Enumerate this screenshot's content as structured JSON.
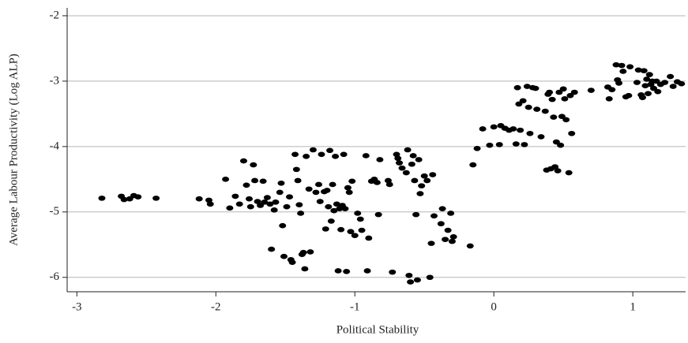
{
  "chart_data": {
    "type": "scatter",
    "x_label": "Political Stability",
    "y_label": "Average Labour Productivity (Log ALP)",
    "xlim": [
      -3.07,
      1.38
    ],
    "xticks": [
      -3,
      -2,
      -1,
      0,
      1
    ],
    "ylim": [
      -6.22,
      -1.88
    ],
    "yticks": [
      -2,
      -3,
      -4,
      -5,
      -6
    ],
    "grid": true,
    "color": "#000000",
    "x": [
      -2.82,
      -2.68,
      -2.66,
      -2.62,
      -2.59,
      -2.56,
      -2.43,
      -2.12,
      -2.05,
      -2.04,
      -1.93,
      -1.9,
      -1.86,
      -1.83,
      -1.8,
      -1.78,
      -1.76,
      -1.75,
      -1.73,
      -1.72,
      -1.7,
      -1.68,
      -1.66,
      -1.65,
      -1.63,
      -1.61,
      -1.6,
      -1.58,
      -1.57,
      -1.54,
      -1.53,
      -1.52,
      -1.51,
      -1.49,
      -1.47,
      -1.46,
      -1.45,
      -1.43,
      -1.42,
      -1.41,
      -1.4,
      -1.39,
      -1.38,
      -1.37,
      -1.36,
      -1.35,
      -1.33,
      -1.32,
      -1.3,
      -1.28,
      -1.26,
      -1.25,
      -1.24,
      -1.22,
      -1.21,
      -1.2,
      -1.19,
      -1.18,
      -1.17,
      -1.16,
      -1.15,
      -1.14,
      -1.13,
      -1.12,
      -1.11,
      -1.1,
      -1.09,
      -1.08,
      -1.07,
      -1.06,
      -1.05,
      -1.04,
      -1.03,
      -1.02,
      -1.0,
      -0.98,
      -0.96,
      -0.95,
      -0.92,
      -0.91,
      -0.9,
      -0.88,
      -0.86,
      -0.84,
      -0.83,
      -0.82,
      -0.76,
      -0.75,
      -0.73,
      -0.7,
      -0.69,
      -0.68,
      -0.66,
      -0.63,
      -0.62,
      -0.61,
      -0.6,
      -0.59,
      -0.58,
      -0.57,
      -0.56,
      -0.55,
      -0.54,
      -0.53,
      -0.52,
      -0.5,
      -0.48,
      -0.46,
      -0.45,
      -0.44,
      -0.43,
      -0.38,
      -0.37,
      -0.35,
      -0.33,
      -0.31,
      -0.3,
      -0.29,
      -0.17,
      -0.15,
      -0.12,
      -0.08,
      -0.03,
      0.0,
      0.04,
      0.05,
      0.08,
      0.11,
      0.14,
      0.16,
      0.17,
      0.18,
      0.19,
      0.21,
      0.22,
      0.24,
      0.25,
      0.26,
      0.28,
      0.3,
      0.31,
      0.34,
      0.37,
      0.38,
      0.39,
      0.4,
      0.41,
      0.42,
      0.43,
      0.44,
      0.45,
      0.46,
      0.47,
      0.48,
      0.49,
      0.5,
      0.51,
      0.52,
      0.54,
      0.55,
      0.56,
      0.58,
      0.7,
      0.82,
      0.83,
      0.85,
      0.88,
      0.89,
      0.9,
      0.92,
      0.93,
      0.95,
      0.97,
      0.98,
      1.03,
      1.04,
      1.06,
      1.07,
      1.08,
      1.09,
      1.1,
      1.11,
      1.12,
      1.13,
      1.14,
      1.15,
      1.17,
      1.18,
      1.2,
      1.23,
      1.27,
      1.29,
      1.32,
      1.35
    ],
    "values": [
      -4.79,
      -4.76,
      -4.81,
      -4.8,
      -4.75,
      -4.77,
      -4.79,
      -4.8,
      -4.82,
      -4.88,
      -4.5,
      -4.94,
      -4.76,
      -4.88,
      -4.22,
      -4.59,
      -4.8,
      -4.92,
      -4.28,
      -4.52,
      -4.84,
      -4.9,
      -4.53,
      -4.85,
      -4.78,
      -4.88,
      -5.57,
      -4.97,
      -4.85,
      -4.7,
      -4.56,
      -5.21,
      -5.68,
      -4.92,
      -4.77,
      -5.73,
      -5.77,
      -4.12,
      -4.35,
      -4.52,
      -4.89,
      -5.02,
      -5.65,
      -5.62,
      -5.87,
      -4.15,
      -4.65,
      -5.61,
      -4.05,
      -4.7,
      -4.58,
      -4.84,
      -4.12,
      -4.69,
      -5.26,
      -4.67,
      -4.92,
      -4.06,
      -5.14,
      -4.58,
      -4.98,
      -4.15,
      -4.88,
      -5.9,
      -4.95,
      -5.27,
      -4.9,
      -4.12,
      -4.95,
      -5.91,
      -4.63,
      -4.7,
      -5.3,
      -4.53,
      -5.36,
      -5.02,
      -5.11,
      -5.28,
      -4.14,
      -5.9,
      -5.4,
      -4.53,
      -4.5,
      -4.55,
      -5.04,
      -4.2,
      -4.52,
      -4.58,
      -5.92,
      -4.12,
      -4.18,
      -4.25,
      -4.33,
      -4.4,
      -4.05,
      -5.97,
      -6.07,
      -4.27,
      -4.14,
      -4.52,
      -5.04,
      -6.04,
      -4.2,
      -4.72,
      -4.6,
      -4.45,
      -4.52,
      -6.0,
      -5.48,
      -4.43,
      -5.06,
      -5.18,
      -4.95,
      -5.42,
      -5.28,
      -5.02,
      -5.45,
      -5.38,
      -5.52,
      -4.28,
      -4.03,
      -3.73,
      -3.98,
      -3.7,
      -3.97,
      -3.68,
      -3.72,
      -3.75,
      -3.73,
      -3.96,
      -3.1,
      -3.35,
      -3.75,
      -3.3,
      -3.97,
      -3.08,
      -3.4,
      -3.8,
      -3.1,
      -3.11,
      -3.43,
      -3.85,
      -3.46,
      -4.36,
      -3.2,
      -3.17,
      -4.34,
      -3.28,
      -3.55,
      -4.31,
      -3.93,
      -4.37,
      -3.17,
      -3.98,
      -3.54,
      -3.12,
      -3.27,
      -3.59,
      -4.4,
      -3.22,
      -3.8,
      -3.17,
      -3.14,
      -3.09,
      -3.27,
      -3.13,
      -2.75,
      -2.98,
      -3.03,
      -2.76,
      -2.85,
      -3.24,
      -3.22,
      -2.78,
      -3.02,
      -2.83,
      -3.21,
      -3.25,
      -2.84,
      -3.07,
      -2.97,
      -3.19,
      -2.9,
      -3.05,
      -3.0,
      -3.11,
      -3.0,
      -3.16,
      -3.05,
      -3.02,
      -2.93,
      -3.08,
      -3.01,
      -3.04
    ]
  }
}
